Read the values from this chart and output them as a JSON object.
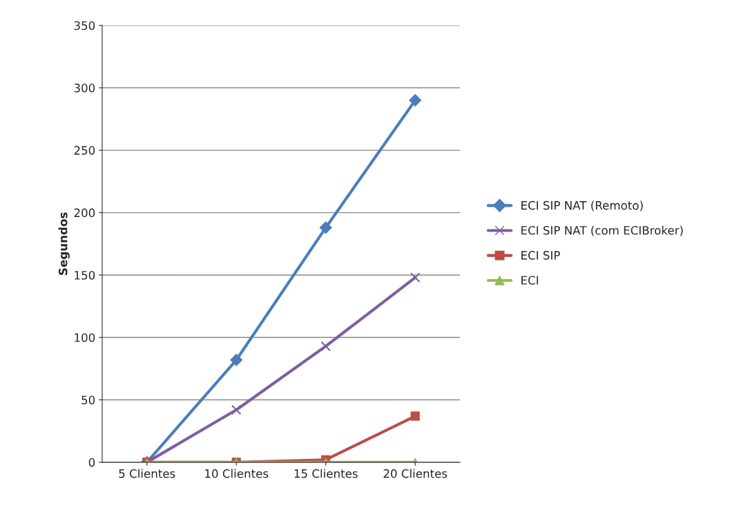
{
  "chart_data": {
    "type": "line",
    "ylabel": "Segundos",
    "categories": [
      "5 Clientes",
      "10 Clientes",
      "15 Clientes",
      "20 Clientes"
    ],
    "series": [
      {
        "name": "ECI SIP NAT (Remoto)",
        "color": "#4a7ebb",
        "marker": "diamond",
        "values": [
          0,
          82,
          188,
          290
        ]
      },
      {
        "name": "ECI SIP NAT (com ECIBroker)",
        "color": "#7d5fa0",
        "marker": "cross",
        "values": [
          0,
          42,
          93,
          148
        ]
      },
      {
        "name": "ECI SIP",
        "color": "#be4b48",
        "marker": "square",
        "values": [
          0,
          0,
          2,
          37
        ]
      },
      {
        "name": "ECI",
        "color": "#98b954",
        "marker": "triangle",
        "values": [
          0,
          0,
          0,
          0
        ]
      }
    ],
    "ylim": [
      0,
      350
    ],
    "yticks": [
      0,
      50,
      100,
      150,
      200,
      250,
      300,
      350
    ],
    "grid": "y",
    "legend": "right"
  }
}
